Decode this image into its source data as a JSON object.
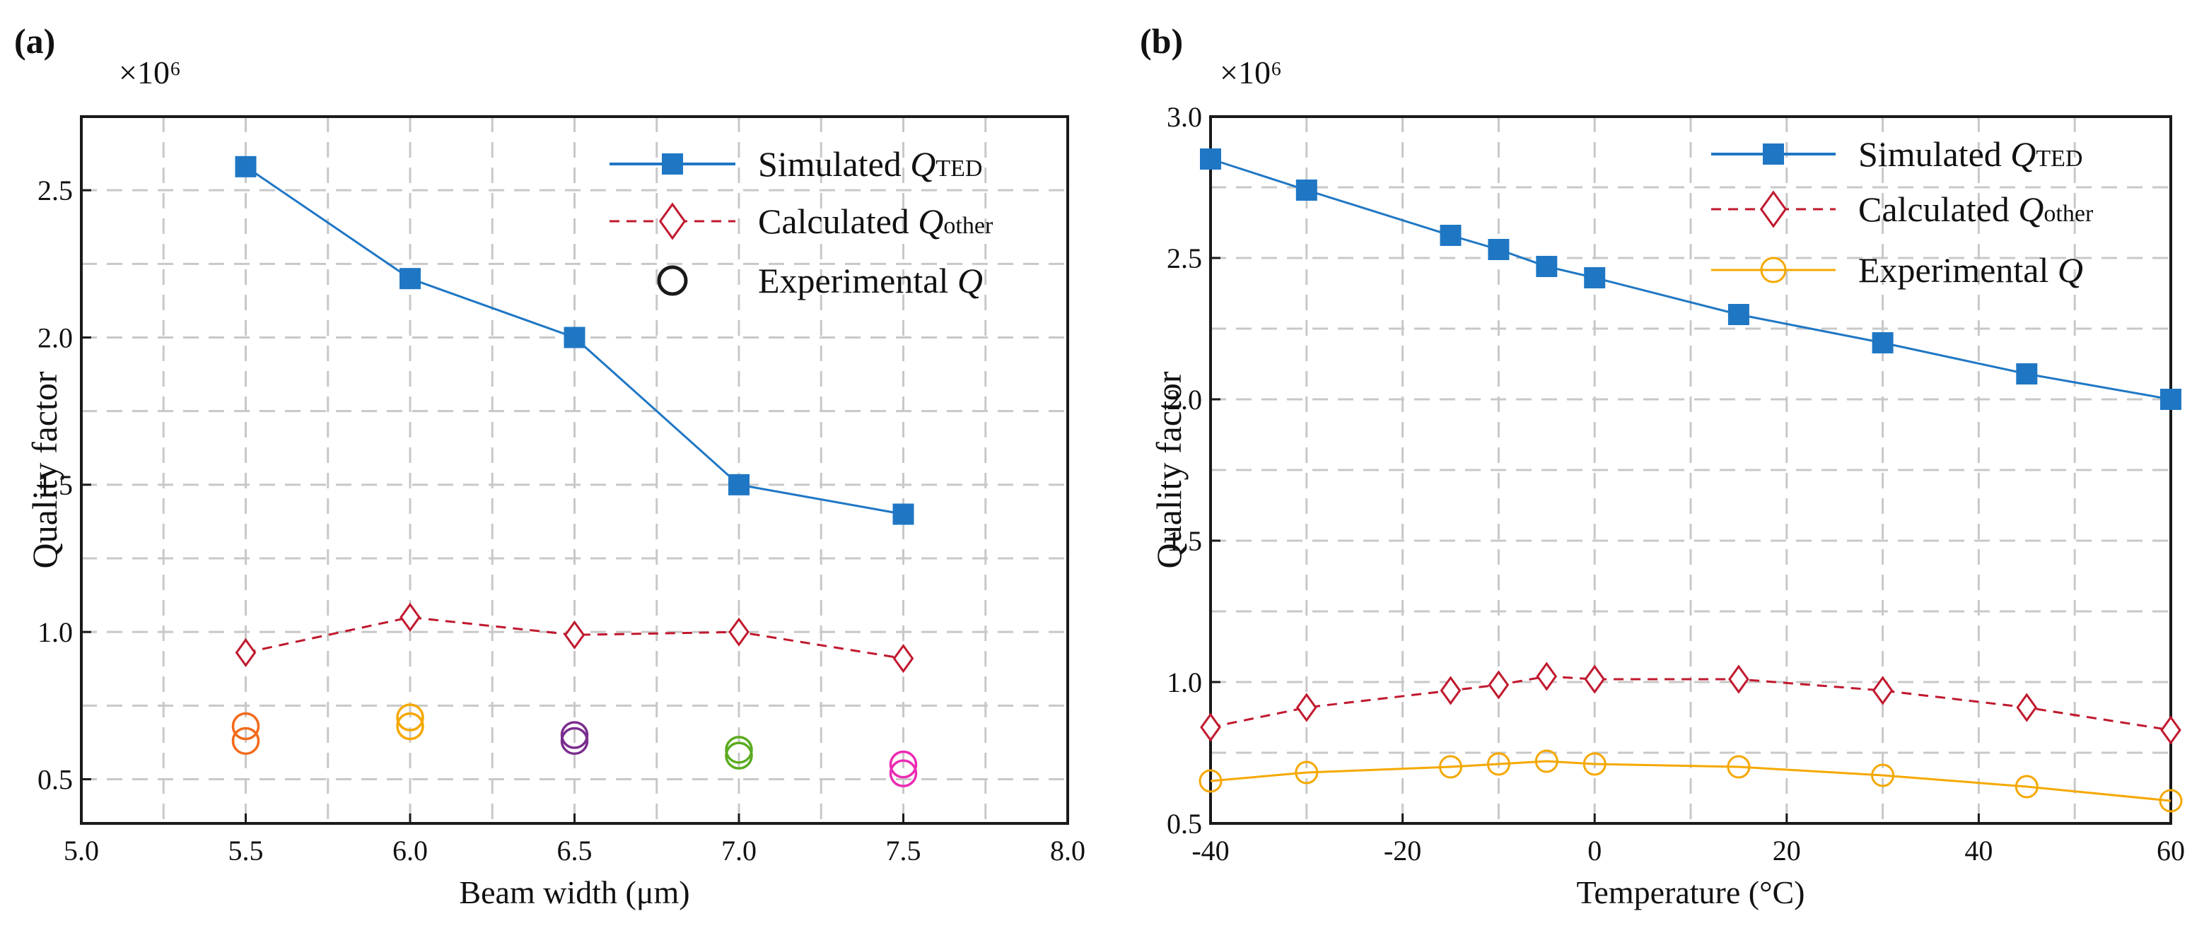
{
  "figure": {
    "panels": [
      "(a)",
      "(b)"
    ]
  },
  "colors": {
    "axis": "#1a1a1a",
    "grid": "#c8c8c8",
    "simulated": "#1f77c4",
    "calculated": "#c0192e",
    "experimental_b": "#f5a800"
  },
  "chart_data": [
    {
      "panel": "(a)",
      "type": "line",
      "xlabel": "Beam width (μm)",
      "ylabel": "Quality factor",
      "multiplier": "×10⁶",
      "xlim": [
        5.0,
        8.0
      ],
      "ylim": [
        0.35,
        2.75
      ],
      "xticks": [
        "5.0",
        "5.5",
        "6.0",
        "6.5",
        "7.0",
        "7.5",
        "8.0"
      ],
      "yticks": [
        "0.5",
        "1.0",
        "1.5",
        "2.0",
        "2.5"
      ],
      "legend_position": "top-right",
      "legend": [
        {
          "key": "sim",
          "text": "Simulated ",
          "q": "Q",
          "sub": "TED"
        },
        {
          "key": "calc",
          "text": "Calculated ",
          "q": "Q",
          "sub": "other"
        },
        {
          "key": "exp",
          "text": "Experimental ",
          "q": "Q",
          "sub": ""
        }
      ],
      "series": [
        {
          "name": "Simulated Q_TED",
          "style": "solid-square",
          "color": "#1f77c4",
          "x": [
            5.5,
            6.0,
            6.5,
            7.0,
            7.5
          ],
          "y": [
            2.58,
            2.2,
            2.0,
            1.5,
            1.4
          ]
        },
        {
          "name": "Calculated Q_other",
          "style": "dashed-diamond",
          "color": "#c0192e",
          "x": [
            5.5,
            6.0,
            6.5,
            7.0,
            7.5
          ],
          "y": [
            0.93,
            1.05,
            0.99,
            1.0,
            0.91
          ]
        },
        {
          "name": "Experimental Q",
          "style": "circles",
          "points": [
            {
              "x": 5.5,
              "y": 0.68,
              "color": "#f26a1b"
            },
            {
              "x": 5.5,
              "y": 0.63,
              "color": "#f26a1b"
            },
            {
              "x": 6.0,
              "y": 0.71,
              "color": "#f5a800"
            },
            {
              "x": 6.0,
              "y": 0.68,
              "color": "#f5a800"
            },
            {
              "x": 6.5,
              "y": 0.65,
              "color": "#7b2d8e"
            },
            {
              "x": 6.5,
              "y": 0.63,
              "color": "#7b2d8e"
            },
            {
              "x": 7.0,
              "y": 0.6,
              "color": "#5aab1f"
            },
            {
              "x": 7.0,
              "y": 0.58,
              "color": "#5aab1f"
            },
            {
              "x": 7.5,
              "y": 0.55,
              "color": "#ec2bb4"
            },
            {
              "x": 7.5,
              "y": 0.52,
              "color": "#ec2bb4"
            }
          ]
        }
      ]
    },
    {
      "panel": "(b)",
      "type": "line",
      "xlabel": "Temperature (°C)",
      "ylabel": "Quality factor",
      "multiplier": "×10⁶",
      "xlim": [
        -40,
        60
      ],
      "ylim": [
        0.5,
        3.0
      ],
      "xticks": [
        "-40",
        "-20",
        "0",
        "20",
        "40",
        "60"
      ],
      "yticks": [
        "0.5",
        "1.0",
        "1.5",
        "2.0",
        "2.5",
        "3.0"
      ],
      "legend_position": "top-right",
      "legend": [
        {
          "key": "sim",
          "text": "Simulated ",
          "q": "Q",
          "sub": "TED"
        },
        {
          "key": "calc",
          "text": "Calculated ",
          "q": "Q",
          "sub": "other"
        },
        {
          "key": "exp",
          "text": "Experimental ",
          "q": "Q",
          "sub": ""
        }
      ],
      "series": [
        {
          "name": "Simulated Q_TED",
          "style": "solid-square",
          "color": "#1f77c4",
          "x": [
            -40,
            -30,
            -15,
            -10,
            -5,
            0,
            15,
            30,
            45,
            60
          ],
          "y": [
            2.85,
            2.74,
            2.58,
            2.53,
            2.47,
            2.43,
            2.3,
            2.2,
            2.09,
            2.0
          ]
        },
        {
          "name": "Calculated Q_other",
          "style": "dashed-diamond",
          "color": "#c0192e",
          "x": [
            -40,
            -30,
            -15,
            -10,
            -5,
            0,
            15,
            30,
            45,
            60
          ],
          "y": [
            0.84,
            0.91,
            0.97,
            0.99,
            1.02,
            1.01,
            1.01,
            0.97,
            0.91,
            0.83
          ]
        },
        {
          "name": "Experimental Q",
          "style": "solid-circle",
          "color": "#f5a800",
          "x": [
            -40,
            -30,
            -15,
            -10,
            -5,
            0,
            15,
            30,
            45,
            60
          ],
          "y": [
            0.65,
            0.68,
            0.7,
            0.71,
            0.72,
            0.71,
            0.7,
            0.67,
            0.63,
            0.58
          ]
        }
      ]
    }
  ]
}
